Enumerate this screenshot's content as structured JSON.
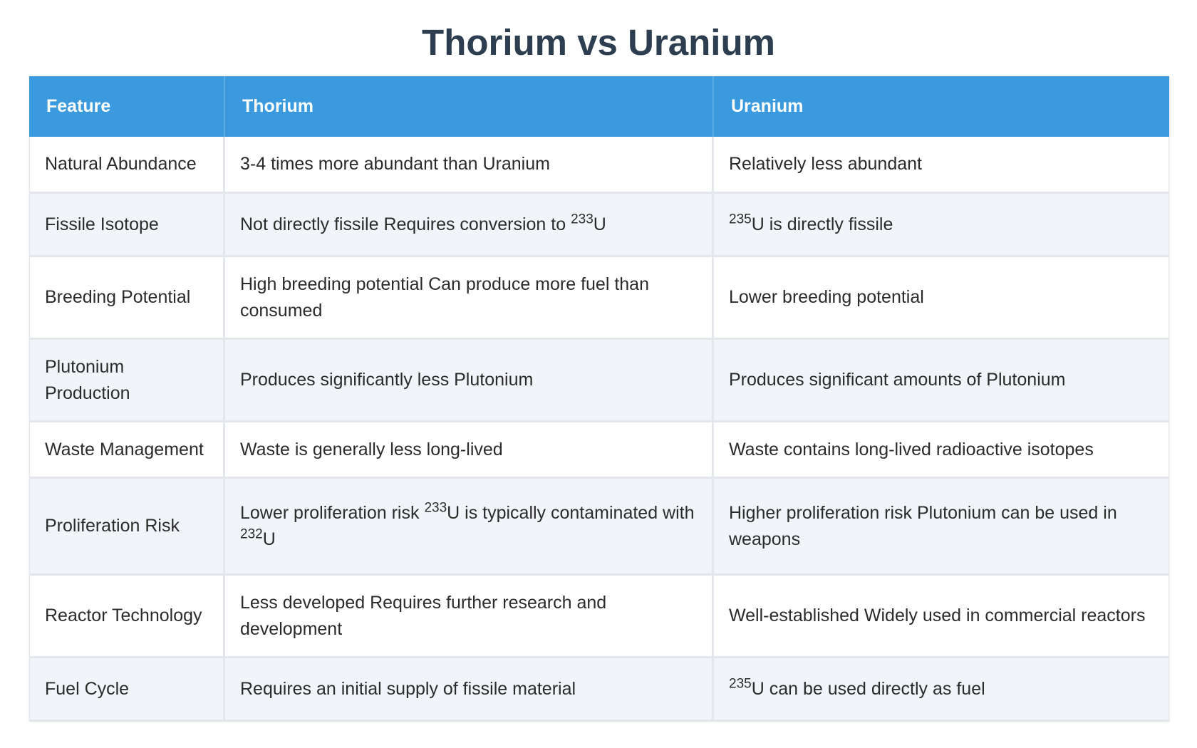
{
  "title": "Thorium vs Uranium",
  "columns": [
    "Feature",
    "Thorium",
    "Uranium"
  ],
  "rows": [
    {
      "feature": "Natural Abundance",
      "thorium": {
        "pre": "3-4 times more abundant than Uranium"
      },
      "uranium": {
        "pre": "Relatively less abundant"
      }
    },
    {
      "feature": "Fissile Isotope",
      "thorium": {
        "pre": "Not directly fissile Requires conversion to ",
        "sup": "233",
        "post": "U"
      },
      "uranium": {
        "pre": "",
        "sup": "235",
        "post": "U is directly fissile"
      }
    },
    {
      "feature": "Breeding Potential",
      "thorium": {
        "pre": "High breeding potential Can produce more fuel than consumed"
      },
      "uranium": {
        "pre": "Lower breeding potential"
      }
    },
    {
      "feature": "Plutonium Production",
      "thorium": {
        "pre": "Produces significantly less Plutonium"
      },
      "uranium": {
        "pre": "Produces significant amounts of Plutonium"
      }
    },
    {
      "feature": "Waste Management",
      "thorium": {
        "pre": "Waste is generally less long-lived"
      },
      "uranium": {
        "pre": "Waste contains long-lived radioactive isotopes"
      }
    },
    {
      "feature": "Proliferation Risk",
      "thorium": {
        "pre": "Lower proliferation risk ",
        "sup": "233",
        "post": "U is typically contaminated with ",
        "sup2": "232",
        "post2": "U"
      },
      "uranium": {
        "pre": "Higher proliferation risk Plutonium can be used in weapons"
      }
    },
    {
      "feature": "Reactor Technology",
      "thorium": {
        "pre": "Less developed Requires further research and development"
      },
      "uranium": {
        "pre": "Well-established Widely used in commercial reactors"
      }
    },
    {
      "feature": "Fuel Cycle",
      "thorium": {
        "pre": "Requires an initial supply of fissile material"
      },
      "uranium": {
        "pre": "",
        "sup": "235",
        "post": "U can be used directly as fuel"
      }
    }
  ]
}
